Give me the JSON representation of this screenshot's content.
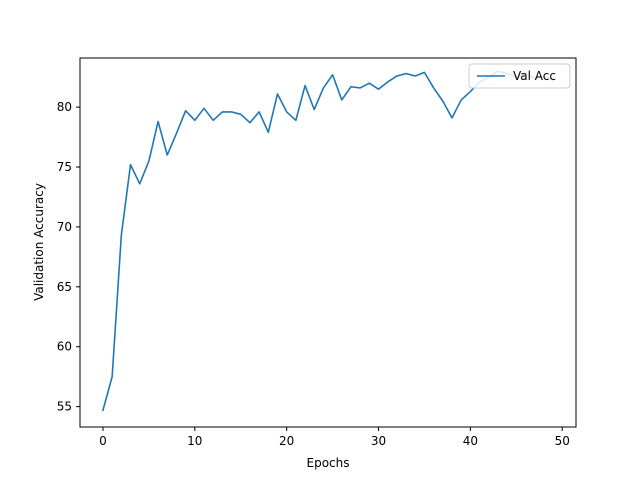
{
  "chart_data": {
    "type": "line",
    "title": "",
    "xlabel": "Epochs",
    "ylabel": "Validation Accuracy",
    "xlim": [
      -2.5,
      51.5
    ],
    "ylim": [
      53.3,
      84.1
    ],
    "x_ticks": [
      0,
      10,
      20,
      30,
      40,
      50
    ],
    "y_ticks": [
      55,
      60,
      65,
      70,
      75,
      80
    ],
    "grid": false,
    "legend_position": "top-right",
    "series": [
      {
        "name": "Val Acc",
        "color": "#1f77b4",
        "x": [
          0,
          1,
          2,
          3,
          4,
          5,
          6,
          7,
          8,
          9,
          10,
          11,
          12,
          13,
          14,
          15,
          16,
          17,
          18,
          19,
          20,
          21,
          22,
          23,
          24,
          25,
          26,
          27,
          28,
          29,
          30,
          31,
          32,
          33,
          34,
          35,
          36,
          37,
          38,
          39,
          40,
          41,
          42,
          43,
          44,
          45,
          46,
          47,
          48,
          49
        ],
        "values": [
          54.7,
          57.5,
          69.3,
          75.2,
          73.6,
          75.5,
          78.8,
          76.0,
          77.8,
          79.7,
          78.9,
          79.9,
          78.9,
          79.6,
          79.6,
          79.4,
          78.7,
          79.6,
          77.9,
          81.1,
          79.6,
          78.9,
          81.8,
          79.8,
          81.6,
          82.7,
          80.6,
          81.7,
          81.6,
          82.0,
          81.5,
          82.1,
          82.6,
          82.8,
          82.6,
          82.9,
          81.6,
          80.5,
          79.1,
          80.6,
          81.3,
          82.1,
          82.5,
          83.0,
          82.8,
          82.5,
          82.8,
          82.4,
          82.6,
          82.2
        ]
      }
    ]
  }
}
